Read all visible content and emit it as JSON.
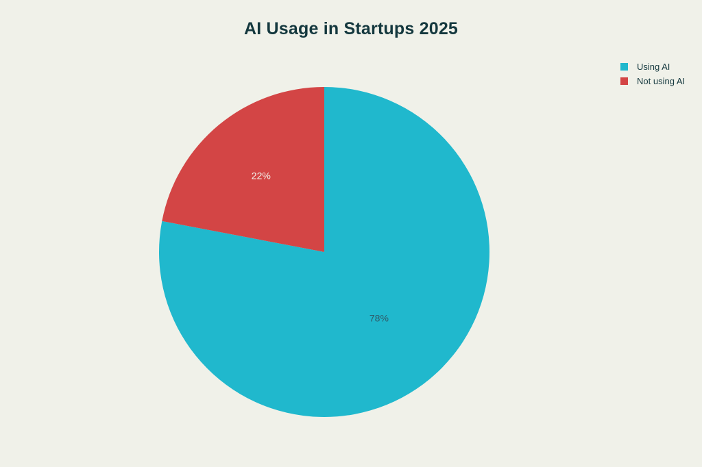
{
  "colors": {
    "background": "#F0F1E9",
    "title_text": "#14383E",
    "legend_text": "#14383E"
  },
  "chart_data": {
    "type": "pie",
    "title": "AI Usage in Startups 2025",
    "labels": [
      "Using AI",
      "Not using AI"
    ],
    "values": [
      78,
      22
    ],
    "slice_colors": [
      "#20B8CD",
      "#D34545"
    ],
    "slice_label_texts": [
      "78%",
      "22%"
    ],
    "slice_label_colors": [
      "#2F5A68",
      "#F4F2EC"
    ],
    "slice_label_radius": [
      0.52,
      0.6
    ],
    "start_angle_deg": -90,
    "direction": "clockwise",
    "legend_position": "top-right"
  }
}
